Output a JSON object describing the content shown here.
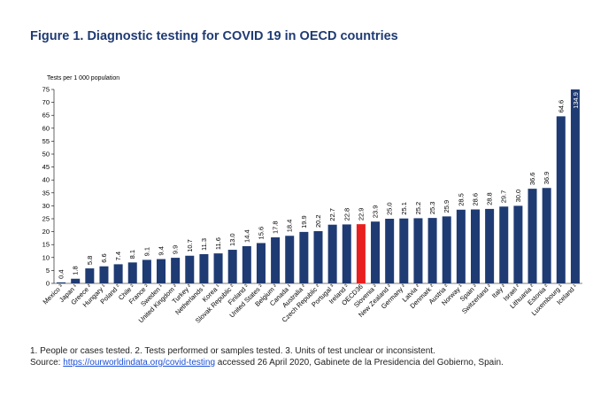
{
  "title": "Figure 1. Diagnostic testing for COVID 19 in OECD countries",
  "notes": {
    "footnote": "1. People or cases tested. 2. Tests performed or samples tested. 3. Units of test unclear or inconsistent.",
    "source_prefix": "Source: ",
    "source_link": "https://ourworldindata.org/covid-testing",
    "source_suffix": " accessed 26 April 2020, Gabinete de la Presidencia del Gobierno, Spain."
  },
  "chart_data": {
    "type": "bar",
    "title": "Figure 1. Diagnostic testing for COVID 19 in OECD countries",
    "ylabel": "Tests per 1 000 population",
    "xlabel": "",
    "ylim": [
      0,
      75
    ],
    "yticks": [
      0,
      5,
      10,
      15,
      20,
      25,
      30,
      35,
      40,
      45,
      50,
      55,
      60,
      65,
      70,
      75
    ],
    "grid": false,
    "legend": "none",
    "colors": {
      "bar": "#1f3b73",
      "highlight": "#e8201f",
      "value_label": "#000000"
    },
    "highlight_category": "OECD36",
    "categories": [
      "Mexico ³",
      "Japan ¹",
      "Greece ²",
      "Hungary ¹",
      "Poland ²",
      "Chile ²",
      "France ²",
      "Sweden ¹",
      "United Kingdom ²",
      "Turkey ²",
      "Netherlands ¹",
      "Korea ¹",
      "Slovak Republic ²",
      "Finland ²",
      "United States ²",
      "Belgium ²",
      "Canada ¹",
      "Australia ²",
      "Czech Republic ²",
      "Portugal ³",
      "Ireland ²",
      "OECD36",
      "Slovenia ²",
      "New Zealand ²",
      "Germany ²",
      "Latvia ²",
      "Denmark ²",
      "Austria ²",
      "Norway ¹",
      "Spain ²",
      "Switzerland ²",
      "Italy ²",
      "Israel ²",
      "Lithuania ²",
      "Estonia ²",
      "Luxembourg ¹",
      "Iceland ¹"
    ],
    "values": [
      0.4,
      1.8,
      5.8,
      6.6,
      7.4,
      8.1,
      9.1,
      9.4,
      9.9,
      10.7,
      11.3,
      11.6,
      13.0,
      14.4,
      15.6,
      17.8,
      18.4,
      19.9,
      20.2,
      22.7,
      22.8,
      22.9,
      23.9,
      25.0,
      25.1,
      25.2,
      25.3,
      25.9,
      28.5,
      28.6,
      28.8,
      29.7,
      30.0,
      36.6,
      36.9,
      64.6,
      134.9
    ],
    "value_labels": [
      "0.4",
      "1.8",
      "5.8",
      "6.6",
      "7.4",
      "8.1",
      "9.1",
      "9.4",
      "9.9",
      "10.7",
      "11.3",
      "11.6",
      "13.0",
      "14.4",
      "15.6",
      "17.8",
      "18.4",
      "19.9",
      "20.2",
      "22.7",
      "22.8",
      "22.9",
      "23.9",
      "25.0",
      "25.1",
      "25.2",
      "25.3",
      "25.9",
      "28.5",
      "28.6",
      "28.8",
      "29.7",
      "30.0",
      "36.6",
      "36.9",
      "64.6",
      "134.9"
    ]
  }
}
